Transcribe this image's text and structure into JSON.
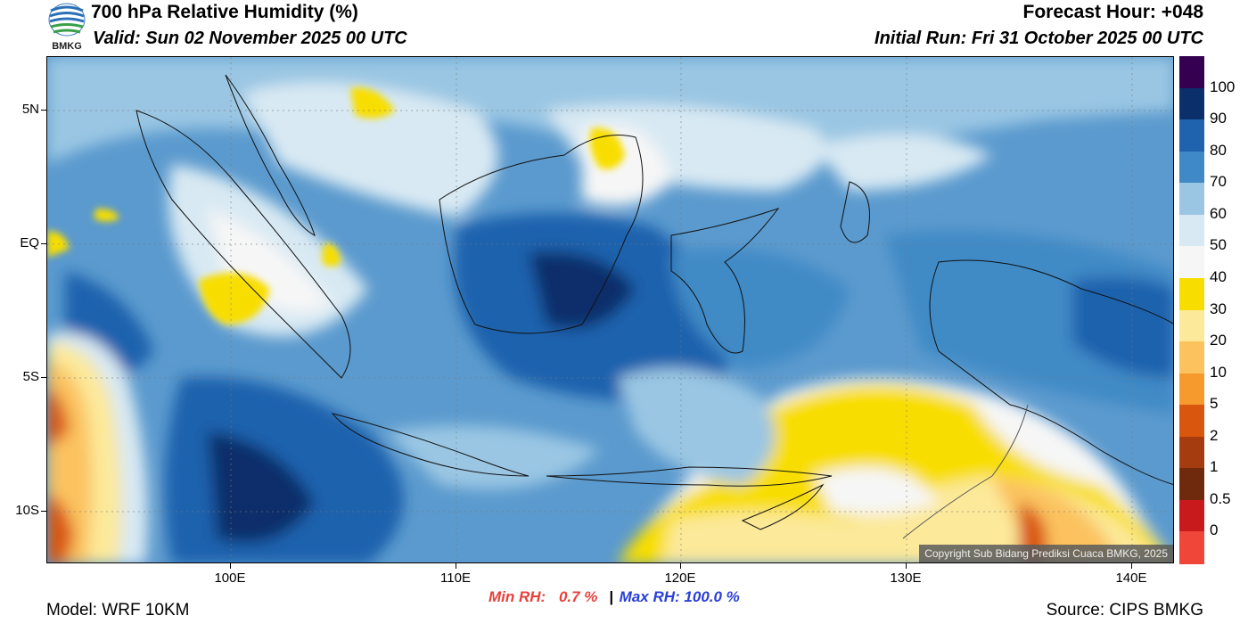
{
  "header": {
    "title": "700 hPa Relative Humidity (%)",
    "valid": "Valid: Sun 02 November 2025 00 UTC",
    "forecast_hour": "Forecast Hour: +048",
    "initial_run": "Initial Run: Fri 31 October 2025 00 UTC",
    "logo_text": "BMKG"
  },
  "map": {
    "lat_labels": [
      "5N",
      "EQ",
      "5S",
      "10S"
    ],
    "lon_labels": [
      "100E",
      "110E",
      "120E",
      "130E",
      "140E"
    ],
    "copyright": "Copyright Sub Bidang Prediksi Cuaca BMKG, 2025"
  },
  "stats": {
    "min_label": "Min RH:",
    "min_value": "0.7 %",
    "separator": "|",
    "max_label": "Max RH: 100.0 %"
  },
  "footer": {
    "model": "Model: WRF 10KM",
    "source": "Source: CIPS BMKG"
  },
  "colorbar": {
    "labels": [
      "100",
      "90",
      "80",
      "70",
      "60",
      "50",
      "40",
      "30",
      "20",
      "10",
      "5",
      "2",
      "1",
      "0.5",
      "0"
    ],
    "colors": [
      "#35004f",
      "#0a2f6b",
      "#1f62ad",
      "#3f8ac6",
      "#9ac6e3",
      "#d8e9f3",
      "#f6f6f6",
      "#f8de00",
      "#fce99a",
      "#fbc25e",
      "#f79a2e",
      "#d9560e",
      "#a53c10",
      "#6f2a0e",
      "#c8191c",
      "#f0463a"
    ]
  }
}
